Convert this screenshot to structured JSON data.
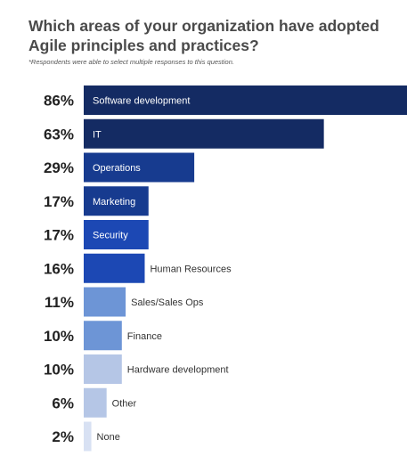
{
  "chart_data": {
    "type": "bar",
    "orientation": "horizontal",
    "title": "Which areas of your organization have adopted Agile principles and practices?",
    "subtitle": "*Respondents were able to select multiple responses to this question.",
    "categories": [
      "Software development",
      "IT",
      "Operations",
      "Marketing",
      "Security",
      "Human Resources",
      "Sales/Sales Ops",
      "Finance",
      "Hardware development",
      "Other",
      "None"
    ],
    "values": [
      86,
      63,
      29,
      17,
      17,
      16,
      11,
      10,
      10,
      6,
      2
    ],
    "value_labels": [
      "86%",
      "63%",
      "29%",
      "17%",
      "17%",
      "16%",
      "11%",
      "10%",
      "10%",
      "6%",
      "2%"
    ],
    "bar_colors": [
      "#142b63",
      "#142b63",
      "#173b8f",
      "#173b8f",
      "#1c48b4",
      "#1c48b4",
      "#6d95d6",
      "#6d95d6",
      "#b5c6e6",
      "#b5c6e6",
      "#d8e1f3"
    ],
    "label_inside": [
      true,
      true,
      true,
      true,
      true,
      false,
      false,
      false,
      false,
      false,
      false
    ],
    "xlim": [
      0,
      100
    ],
    "grid": false,
    "legend": "none"
  }
}
